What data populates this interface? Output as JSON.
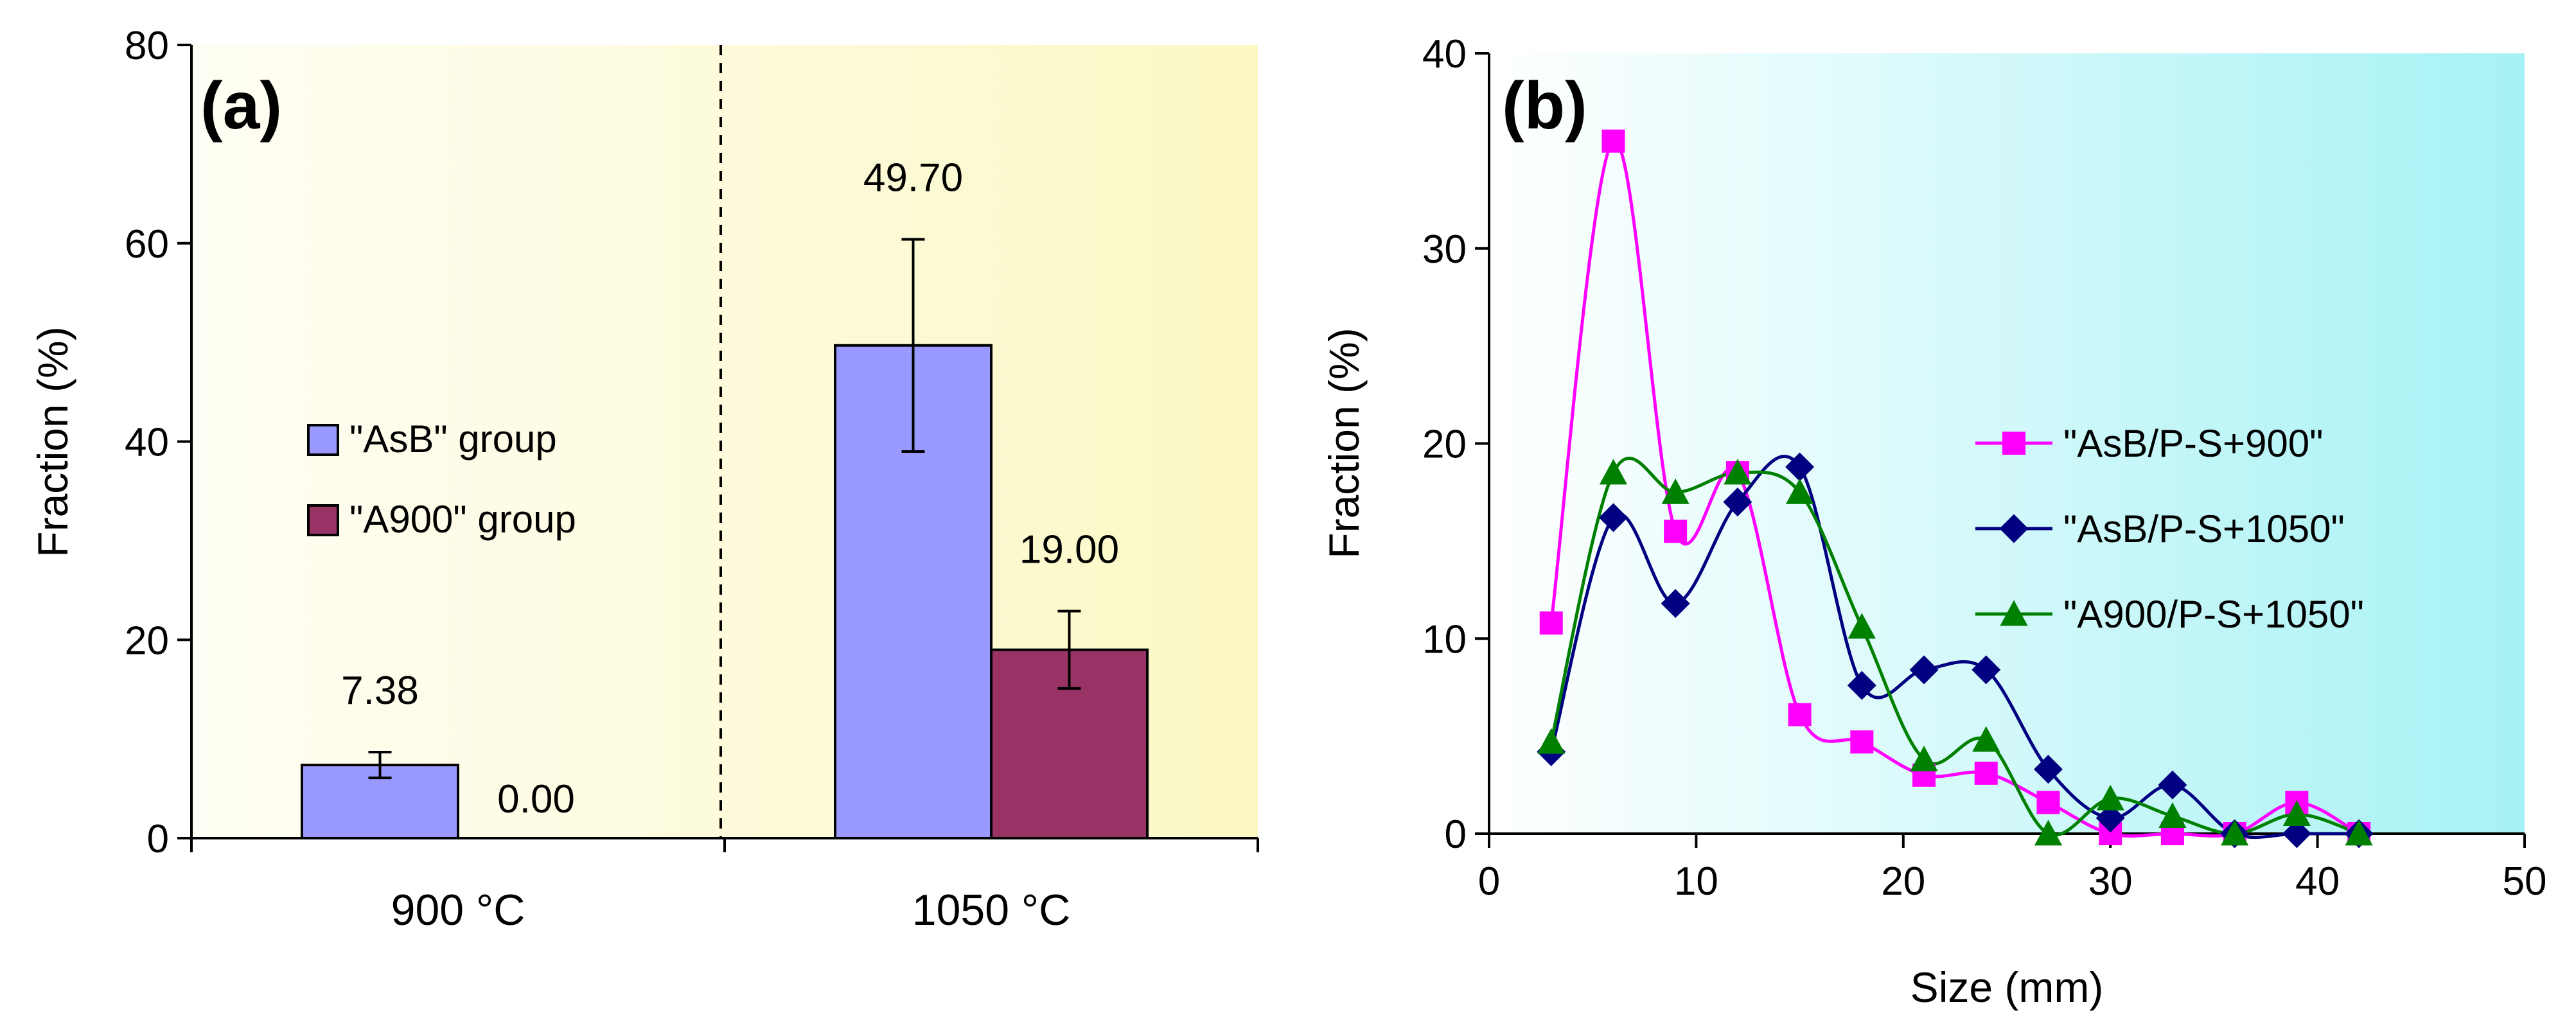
{
  "chart_data": [
    {
      "panel": "(a)",
      "type": "bar",
      "title": "",
      "xlabel": "",
      "ylabel": "Fraction (%)",
      "ylim": [
        0,
        80
      ],
      "yticks": [
        0,
        20,
        40,
        60,
        80
      ],
      "categories": [
        "900 °C",
        "1050 °C"
      ],
      "series": [
        {
          "name": "\"AsB\" group",
          "color": "#9999ff",
          "values": [
            7.38,
            49.7
          ],
          "errors": [
            1.3,
            10.7
          ],
          "labels": [
            "7.38",
            "49.70"
          ]
        },
        {
          "name": "\"A900\" group",
          "color": "#993366",
          "values": [
            0.0,
            19.0
          ],
          "errors": [
            0,
            3.9
          ],
          "labels": [
            "0.00",
            "19.00"
          ]
        }
      ],
      "legend_position": "center-left"
    },
    {
      "panel": "(b)",
      "type": "line",
      "title": "",
      "xlabel": "Size (mm)",
      "ylabel": "Fraction (%)",
      "xlim": [
        0,
        50
      ],
      "ylim": [
        0,
        40
      ],
      "xticks": [
        0,
        10,
        20,
        30,
        40,
        50
      ],
      "yticks": [
        0,
        10,
        20,
        30,
        40
      ],
      "x": [
        3,
        6,
        9,
        12,
        15,
        18,
        21,
        24,
        27,
        30,
        33,
        36,
        39,
        42
      ],
      "series": [
        {
          "name": "\"AsB/P-S+900\"",
          "color": "#ff00ff",
          "marker": "square",
          "values": [
            10.8,
            35.5,
            15.5,
            18.5,
            6.1,
            4.7,
            3.0,
            3.1,
            1.6,
            0,
            0,
            0,
            1.6,
            0
          ]
        },
        {
          "name": "\"AsB/P-S+1050\"",
          "color": "#000080",
          "marker": "diamond",
          "values": [
            4.2,
            16.2,
            11.8,
            17.0,
            18.8,
            7.6,
            8.4,
            8.4,
            3.3,
            0.8,
            2.5,
            0,
            0,
            0
          ]
        },
        {
          "name": "\"A900/P-S+1050\"",
          "color": "#008000",
          "marker": "triangle",
          "values": [
            4.7,
            18.5,
            17.5,
            18.5,
            17.5,
            10.6,
            3.8,
            4.8,
            0,
            1.8,
            0.9,
            0,
            1.0,
            0
          ]
        }
      ],
      "legend_position": "center-right"
    }
  ]
}
